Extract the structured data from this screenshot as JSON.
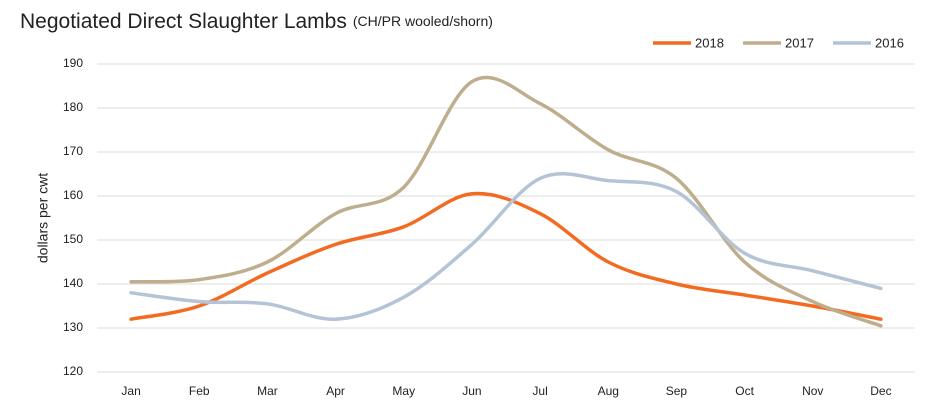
{
  "chart_data": {
    "type": "line",
    "title": "Negotiated Direct Slaughter Lambs",
    "subtitle": "(CH/PR wooled/shorn)",
    "y_label": "dollars per cwt",
    "categories": [
      "Jan",
      "Feb",
      "Mar",
      "Apr",
      "May",
      "Jun",
      "Jul",
      "Aug",
      "Sep",
      "Oct",
      "Nov",
      "Dec"
    ],
    "series": [
      {
        "name": "2018",
        "color": "#f26b21",
        "values": [
          132,
          135,
          142.5,
          149,
          153,
          160.5,
          156,
          145,
          140,
          137.5,
          135,
          132
        ]
      },
      {
        "name": "2017",
        "color": "#bfae8e",
        "values": [
          140.5,
          141,
          145,
          156,
          162,
          186,
          181,
          170.5,
          164,
          145,
          136,
          130.5
        ]
      },
      {
        "name": "2016",
        "color": "#b4c3d6",
        "values": [
          138,
          136,
          135.5,
          132,
          137,
          149,
          164,
          163.5,
          161,
          147,
          143,
          139
        ]
      }
    ],
    "ylim": [
      120,
      190
    ],
    "yticks": [
      120,
      130,
      140,
      150,
      160,
      170,
      180,
      190
    ],
    "grid": true,
    "legend": "top-right",
    "smooth": true
  }
}
